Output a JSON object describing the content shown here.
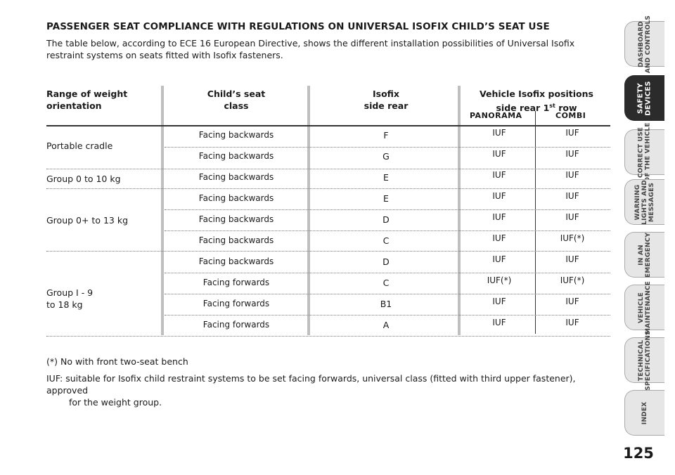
{
  "heading": "PASSENGER SEAT COMPLIANCE WITH REGULATIONS ON UNIVERSAL ISOFIX CHILD’S SEAT USE",
  "intro": "The table below, according to ECE 16 European Directive, shows the different installation possibilities of Universal Isofix restraint systems on seats fitted with Isofix fasteners.",
  "table": {
    "headers": {
      "range_l1": "Range of weight",
      "range_l2": "orientation",
      "class_l1": "Child’s seat",
      "class_l2": "class",
      "isofix_l1": "Isofix",
      "isofix_l2": "side rear",
      "vehicle_l1": "Vehicle Isofix positions",
      "vehicle_l2": "side rear 1",
      "vehicle_sup": "st",
      "vehicle_l2b": " row",
      "panorama": "PANORAMA",
      "combi": "COMBI"
    },
    "groups": [
      {
        "label_l1": "Portable cradle",
        "label_l2": ""
      },
      {
        "label_l1": "Group 0 to 10 kg",
        "label_l2": ""
      },
      {
        "label_l1": "Group 0+ to 13 kg",
        "label_l2": ""
      },
      {
        "label_l1": "Group I - 9",
        "label_l2": "to 18 kg"
      }
    ],
    "rows": [
      {
        "orientation": "Facing backwards",
        "isofix": "F",
        "panorama": "IUF",
        "combi": "IUF"
      },
      {
        "orientation": "Facing backwards",
        "isofix": "G",
        "panorama": "IUF",
        "combi": "IUF"
      },
      {
        "orientation": "Facing backwards",
        "isofix": "E",
        "panorama": "IUF",
        "combi": "IUF"
      },
      {
        "orientation": "Facing backwards",
        "isofix": "E",
        "panorama": "IUF",
        "combi": "IUF"
      },
      {
        "orientation": "Facing backwards",
        "isofix": "D",
        "panorama": "IUF",
        "combi": "IUF"
      },
      {
        "orientation": "Facing backwards",
        "isofix": "C",
        "panorama": "IUF",
        "combi": "IUF(*)"
      },
      {
        "orientation": "Facing backwards",
        "isofix": "D",
        "panorama": "IUF",
        "combi": "IUF"
      },
      {
        "orientation": "Facing forwards",
        "isofix": "C",
        "panorama": "IUF(*)",
        "combi": "IUF(*)"
      },
      {
        "orientation": "Facing forwards",
        "isofix": "B1",
        "panorama": "IUF",
        "combi": "IUF"
      },
      {
        "orientation": "Facing forwards",
        "isofix": "A",
        "panorama": "IUF",
        "combi": "IUF"
      }
    ]
  },
  "notes": {
    "star": "(*) No with front two-seat bench",
    "iuf_l1": "IUF: suitable for Isofix child restraint systems to be set facing forwards, universal class  (fitted with third upper fastener), approved",
    "iuf_l2": "for the weight group."
  },
  "tabs": [
    {
      "label": "DASHBOARD\nAND CONTROLS",
      "active": false
    },
    {
      "label": "SAFETY\nDEVICES",
      "active": true
    },
    {
      "label": "CORRECT USE\nOF THE VEHICLE",
      "active": false
    },
    {
      "label": "WARNING\nLIGHTS AND\nMESSAGES",
      "active": false
    },
    {
      "label": "IN AN\nEMERGENCY",
      "active": false
    },
    {
      "label": "VEHICLE\nMAINTENANCE",
      "active": false
    },
    {
      "label": "TECHNICAL\nSPECIFICATIONS",
      "active": false
    },
    {
      "label": "INDEX",
      "active": false
    }
  ],
  "page_number": "125"
}
